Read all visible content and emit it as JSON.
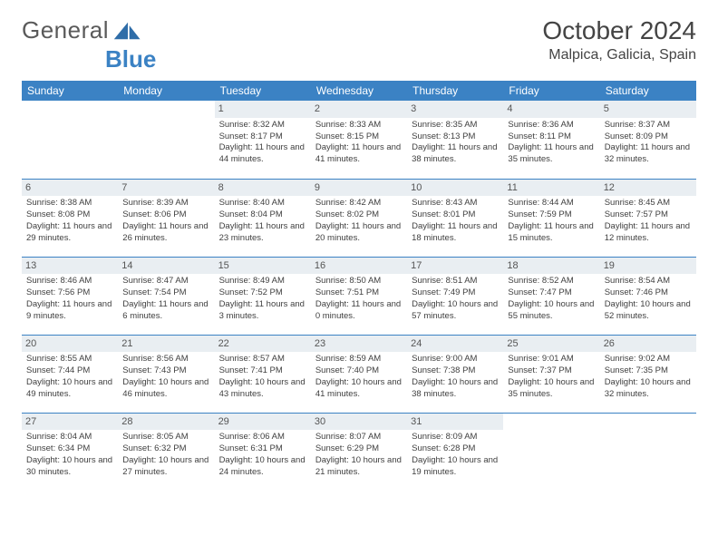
{
  "brand": {
    "part1": "General",
    "part2": "Blue"
  },
  "title": "October 2024",
  "location": "Malpica, Galicia, Spain",
  "colors": {
    "header_bg": "#3b82c4",
    "header_text": "#ffffff",
    "daynum_bg": "#e9eef2",
    "rule": "#3b82c4",
    "text": "#404040"
  },
  "dayHeaders": [
    "Sunday",
    "Monday",
    "Tuesday",
    "Wednesday",
    "Thursday",
    "Friday",
    "Saturday"
  ],
  "weeks": [
    [
      null,
      null,
      {
        "n": "1",
        "sr": "8:32 AM",
        "ss": "8:17 PM",
        "dl": "11 hours and 44 minutes."
      },
      {
        "n": "2",
        "sr": "8:33 AM",
        "ss": "8:15 PM",
        "dl": "11 hours and 41 minutes."
      },
      {
        "n": "3",
        "sr": "8:35 AM",
        "ss": "8:13 PM",
        "dl": "11 hours and 38 minutes."
      },
      {
        "n": "4",
        "sr": "8:36 AM",
        "ss": "8:11 PM",
        "dl": "11 hours and 35 minutes."
      },
      {
        "n": "5",
        "sr": "8:37 AM",
        "ss": "8:09 PM",
        "dl": "11 hours and 32 minutes."
      }
    ],
    [
      {
        "n": "6",
        "sr": "8:38 AM",
        "ss": "8:08 PM",
        "dl": "11 hours and 29 minutes."
      },
      {
        "n": "7",
        "sr": "8:39 AM",
        "ss": "8:06 PM",
        "dl": "11 hours and 26 minutes."
      },
      {
        "n": "8",
        "sr": "8:40 AM",
        "ss": "8:04 PM",
        "dl": "11 hours and 23 minutes."
      },
      {
        "n": "9",
        "sr": "8:42 AM",
        "ss": "8:02 PM",
        "dl": "11 hours and 20 minutes."
      },
      {
        "n": "10",
        "sr": "8:43 AM",
        "ss": "8:01 PM",
        "dl": "11 hours and 18 minutes."
      },
      {
        "n": "11",
        "sr": "8:44 AM",
        "ss": "7:59 PM",
        "dl": "11 hours and 15 minutes."
      },
      {
        "n": "12",
        "sr": "8:45 AM",
        "ss": "7:57 PM",
        "dl": "11 hours and 12 minutes."
      }
    ],
    [
      {
        "n": "13",
        "sr": "8:46 AM",
        "ss": "7:56 PM",
        "dl": "11 hours and 9 minutes."
      },
      {
        "n": "14",
        "sr": "8:47 AM",
        "ss": "7:54 PM",
        "dl": "11 hours and 6 minutes."
      },
      {
        "n": "15",
        "sr": "8:49 AM",
        "ss": "7:52 PM",
        "dl": "11 hours and 3 minutes."
      },
      {
        "n": "16",
        "sr": "8:50 AM",
        "ss": "7:51 PM",
        "dl": "11 hours and 0 minutes."
      },
      {
        "n": "17",
        "sr": "8:51 AM",
        "ss": "7:49 PM",
        "dl": "10 hours and 57 minutes."
      },
      {
        "n": "18",
        "sr": "8:52 AM",
        "ss": "7:47 PM",
        "dl": "10 hours and 55 minutes."
      },
      {
        "n": "19",
        "sr": "8:54 AM",
        "ss": "7:46 PM",
        "dl": "10 hours and 52 minutes."
      }
    ],
    [
      {
        "n": "20",
        "sr": "8:55 AM",
        "ss": "7:44 PM",
        "dl": "10 hours and 49 minutes."
      },
      {
        "n": "21",
        "sr": "8:56 AM",
        "ss": "7:43 PM",
        "dl": "10 hours and 46 minutes."
      },
      {
        "n": "22",
        "sr": "8:57 AM",
        "ss": "7:41 PM",
        "dl": "10 hours and 43 minutes."
      },
      {
        "n": "23",
        "sr": "8:59 AM",
        "ss": "7:40 PM",
        "dl": "10 hours and 41 minutes."
      },
      {
        "n": "24",
        "sr": "9:00 AM",
        "ss": "7:38 PM",
        "dl": "10 hours and 38 minutes."
      },
      {
        "n": "25",
        "sr": "9:01 AM",
        "ss": "7:37 PM",
        "dl": "10 hours and 35 minutes."
      },
      {
        "n": "26",
        "sr": "9:02 AM",
        "ss": "7:35 PM",
        "dl": "10 hours and 32 minutes."
      }
    ],
    [
      {
        "n": "27",
        "sr": "8:04 AM",
        "ss": "6:34 PM",
        "dl": "10 hours and 30 minutes."
      },
      {
        "n": "28",
        "sr": "8:05 AM",
        "ss": "6:32 PM",
        "dl": "10 hours and 27 minutes."
      },
      {
        "n": "29",
        "sr": "8:06 AM",
        "ss": "6:31 PM",
        "dl": "10 hours and 24 minutes."
      },
      {
        "n": "30",
        "sr": "8:07 AM",
        "ss": "6:29 PM",
        "dl": "10 hours and 21 minutes."
      },
      {
        "n": "31",
        "sr": "8:09 AM",
        "ss": "6:28 PM",
        "dl": "10 hours and 19 minutes."
      },
      null,
      null
    ]
  ],
  "labels": {
    "sunrise": "Sunrise: ",
    "sunset": "Sunset: ",
    "daylight": "Daylight: "
  }
}
